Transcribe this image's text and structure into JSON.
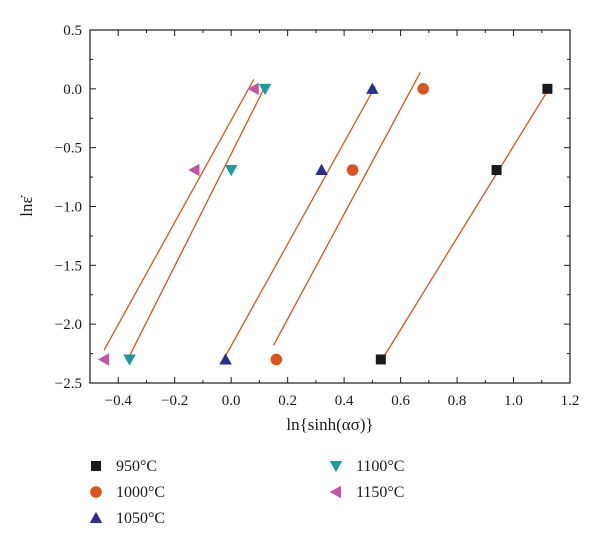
{
  "chart_data": {
    "type": "scatter",
    "xlabel": "ln{sinh(ασ)}",
    "ylabel": "lnε̇",
    "xlim": [
      -0.5,
      1.2
    ],
    "ylim": [
      -2.5,
      0.5
    ],
    "x_ticks": [
      -0.4,
      -0.2,
      0.0,
      0.2,
      0.4,
      0.6,
      0.8,
      1.0,
      1.2
    ],
    "x_tick_labels": [
      "−0.4",
      "−0.2",
      "0.0",
      "0.2",
      "0.4",
      "0.6",
      "0.8",
      "1.0",
      "1.2"
    ],
    "y_ticks": [
      0.5,
      0.0,
      -0.5,
      -1.0,
      -1.5,
      -2.0,
      -2.5
    ],
    "y_tick_labels": [
      "0.5",
      "0.0",
      "−0.5",
      "−1.0",
      "−1.5",
      "−2.0",
      "−2.5"
    ],
    "grid": false,
    "legend_position": "below",
    "fit_line_color": "#d9541e",
    "series": [
      {
        "name": "950°C",
        "marker": "square",
        "color": "#1a1a1a",
        "points": [
          [
            0.53,
            -2.3
          ],
          [
            0.94,
            -0.69
          ],
          [
            1.12,
            0.0
          ]
        ],
        "fit": [
          [
            0.54,
            -2.28
          ],
          [
            1.13,
            0.02
          ]
        ]
      },
      {
        "name": "1000°C",
        "marker": "circle",
        "color": "#d9541e",
        "points": [
          [
            0.16,
            -2.3
          ],
          [
            0.43,
            -0.69
          ],
          [
            0.68,
            0.0
          ]
        ],
        "fit": [
          [
            0.15,
            -2.18
          ],
          [
            0.67,
            0.14
          ]
        ]
      },
      {
        "name": "1050°C",
        "marker": "triangle-up",
        "color": "#2b2f8f",
        "points": [
          [
            -0.02,
            -2.3
          ],
          [
            0.32,
            -0.69
          ],
          [
            0.5,
            0.0
          ]
        ],
        "fit": [
          [
            -0.02,
            -2.27
          ],
          [
            0.51,
            0.02
          ]
        ]
      },
      {
        "name": "1100°C",
        "marker": "triangle-down",
        "color": "#1f9a9a",
        "points": [
          [
            -0.36,
            -2.3
          ],
          [
            0.0,
            -0.69
          ],
          [
            0.12,
            0.0
          ]
        ],
        "fit": [
          [
            -0.36,
            -2.27
          ],
          [
            0.12,
            0.02
          ]
        ]
      },
      {
        "name": "1150°C",
        "marker": "triangle-left",
        "color": "#c056a6",
        "points": [
          [
            -0.45,
            -2.3
          ],
          [
            -0.13,
            -0.69
          ],
          [
            0.08,
            0.0
          ]
        ],
        "fit": [
          [
            -0.45,
            -2.22
          ],
          [
            0.08,
            0.08
          ]
        ]
      }
    ]
  }
}
